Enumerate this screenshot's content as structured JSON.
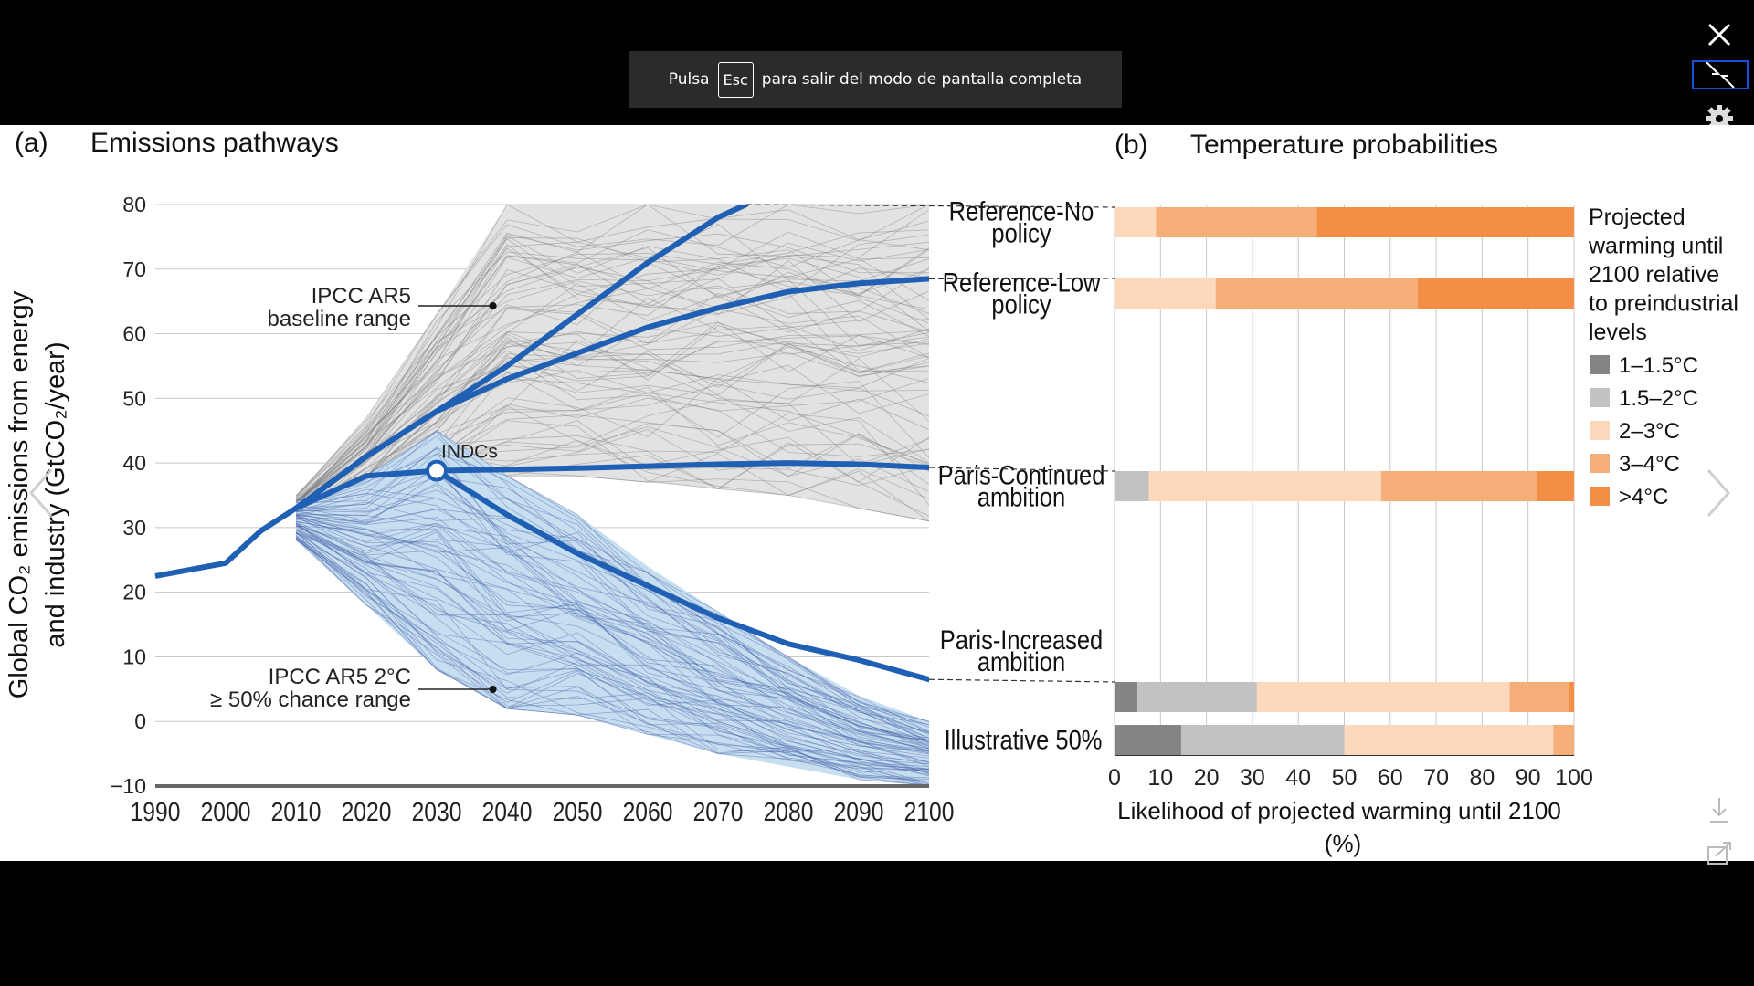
{
  "viewer": {
    "banner": {
      "prefix": "Pulsa",
      "key": "Esc",
      "suffix": "para salir del modo de pantalla completa"
    },
    "controls": {
      "close_icon": "close-icon",
      "exit_fullscreen_icon": "exit-fullscreen-icon",
      "settings_icon": "gear-icon",
      "prev_icon": "chevron-left-icon",
      "next_icon": "chevron-right-icon",
      "download_icon": "download-icon",
      "share_icon": "share-icon"
    }
  },
  "chart_data": [
    {
      "type": "line",
      "panel_label": "(a)",
      "title": "Emissions pathways",
      "xlabel": "",
      "ylabel_line1": "Global CO₂ emissions from energy",
      "ylabel_line2": "and industry (GtCO₂/year)",
      "xlim": [
        1990,
        2100
      ],
      "ylim": [
        -10,
        80
      ],
      "x_ticks": [
        1990,
        2000,
        2010,
        2020,
        2030,
        2040,
        2050,
        2060,
        2070,
        2080,
        2090,
        2100
      ],
      "y_ticks": [
        -10,
        0,
        10,
        20,
        30,
        40,
        50,
        60,
        70,
        80
      ],
      "grid": "horizontal",
      "colors": {
        "pathway": "#1f5fb4",
        "baseline_band": "#e2e2e2",
        "baseline_lines": "#7a7a7a",
        "two_degree_band": "#c6dff0",
        "two_degree_lines": "#4a5fa8",
        "axis": "#666666"
      },
      "historical": {
        "x": [
          1990,
          2000,
          2005,
          2010
        ],
        "y": [
          22.5,
          24.5,
          29.5,
          33
        ]
      },
      "series": [
        {
          "name": "Reference-No policy",
          "x": [
            2010,
            2020,
            2030,
            2040,
            2050,
            2060,
            2070,
            2074
          ],
          "y": [
            33,
            41,
            48,
            55,
            63,
            71,
            78,
            80
          ]
        },
        {
          "name": "Reference-Low policy",
          "x": [
            2010,
            2020,
            2030,
            2040,
            2050,
            2060,
            2070,
            2080,
            2090,
            2100
          ],
          "y": [
            33,
            41,
            48,
            53,
            57,
            61,
            64,
            66.5,
            67.8,
            68.5
          ]
        },
        {
          "name": "Paris-Continued ambition",
          "x": [
            2010,
            2020,
            2030,
            2040,
            2050,
            2060,
            2070,
            2080,
            2090,
            2100
          ],
          "y": [
            33,
            38,
            38.8,
            39,
            39.2,
            39.5,
            39.8,
            40,
            39.8,
            39.3
          ]
        },
        {
          "name": "Paris-Increased ambition",
          "x": [
            2030,
            2040,
            2050,
            2060,
            2070,
            2080,
            2090,
            2100
          ],
          "y": [
            38.8,
            32,
            26,
            21,
            16,
            12,
            9.5,
            6.5
          ]
        }
      ],
      "bands": [
        {
          "name": "IPCC AR5 baseline range",
          "x": [
            2010,
            2020,
            2030,
            2040,
            2050,
            2060,
            2070,
            2080,
            2090,
            2100
          ],
          "lower": [
            30,
            32,
            36,
            38,
            38,
            37,
            36,
            35,
            33,
            31
          ],
          "upper": [
            35,
            47,
            63,
            80,
            80,
            80,
            80,
            80,
            80,
            80
          ]
        },
        {
          "name": "IPCC AR5 2°C ≥ 50% chance range",
          "x": [
            2010,
            2020,
            2030,
            2040,
            2050,
            2060,
            2070,
            2080,
            2090,
            2100
          ],
          "lower": [
            28,
            18,
            8,
            2,
            1,
            -2,
            -5,
            -7,
            -9,
            -10
          ],
          "upper": [
            34,
            38,
            45,
            38,
            32,
            24,
            17,
            10,
            4,
            0
          ]
        }
      ],
      "annotations": [
        {
          "text": "IPCC AR5",
          "text2": "baseline range",
          "x": 2038,
          "y": 64
        },
        {
          "text": "INDCs",
          "x": 2030,
          "y": 38.8
        },
        {
          "text": "IPCC AR5 2°C",
          "text2": "≥ 50% chance range",
          "x": 2038,
          "y": 5
        }
      ]
    },
    {
      "type": "bar",
      "orientation": "horizontal",
      "stacked": true,
      "panel_label": "(b)",
      "title": "Temperature probabilities",
      "xlabel_line1": "Likelihood of projected warming until 2100",
      "xlabel_line2": "(%)",
      "xlim": [
        0,
        100
      ],
      "x_ticks": [
        0,
        10,
        20,
        30,
        40,
        50,
        60,
        70,
        80,
        90,
        100
      ],
      "grid": "vertical",
      "legend_title": [
        "Projected",
        "warming until",
        "2100 relative",
        "to preindustrial",
        "levels"
      ],
      "legend_position": "right",
      "segments": [
        {
          "name": "1–1.5°C",
          "color": "#848484"
        },
        {
          "name": "1.5–2°C",
          "color": "#c2c2c2"
        },
        {
          "name": "2–3°C",
          "color": "#fcd9bd"
        },
        {
          "name": "3–4°C",
          "color": "#f6ae78"
        },
        {
          "name": ">4°C",
          "color": "#f48d45"
        }
      ],
      "categories": [
        {
          "label": [
            "Reference-No",
            "policy"
          ],
          "values": [
            0,
            0,
            9,
            35,
            56
          ]
        },
        {
          "label": [
            "Reference-Low",
            "policy"
          ],
          "values": [
            0,
            0,
            22,
            44,
            34
          ]
        },
        {
          "label": [
            "Paris-Continued",
            "ambition"
          ],
          "values": [
            0,
            7.5,
            50.5,
            34,
            8
          ]
        },
        {
          "label": [
            "Paris-Increased",
            "ambition"
          ],
          "values": [
            5,
            26,
            55,
            13,
            1
          ]
        },
        {
          "label": [
            "Illustrative 50%"
          ],
          "values": [
            14.5,
            35.5,
            45.5,
            4.5,
            0
          ]
        }
      ]
    }
  ]
}
